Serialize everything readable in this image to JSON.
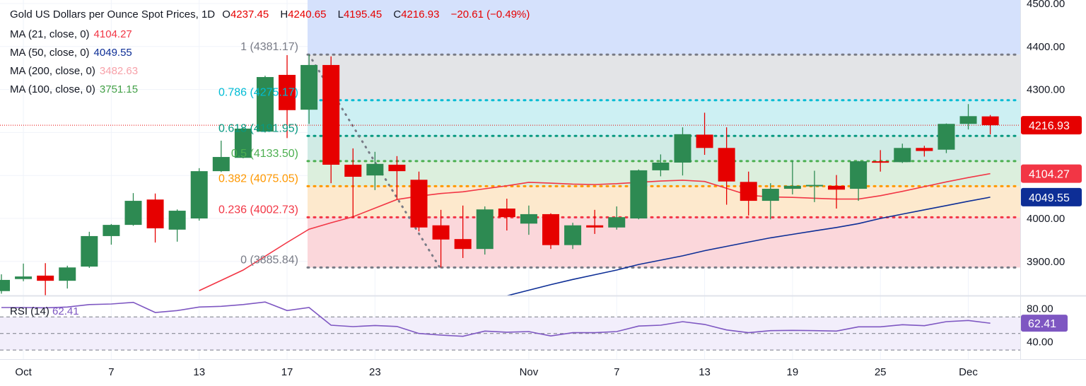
{
  "header": {
    "symbol": "Gold US Dollars per Ounce Spot Prices, 1D",
    "o_label": "O",
    "o_value": "4237.45",
    "h_label": "H",
    "h_value": "4240.65",
    "l_label": "L",
    "l_value": "4195.45",
    "c_label": "C",
    "c_value": "4216.93",
    "change": "−20.61 (−0.49%)"
  },
  "indicators": [
    {
      "label": "MA (21, close, 0)",
      "value": "4104.27",
      "color": "#f23645"
    },
    {
      "label": "MA (50, close, 0)",
      "value": "4049.55",
      "color": "#0d2e96"
    },
    {
      "label": "MA (200, close, 0)",
      "value": "3482.63",
      "color": "#f7a1a9"
    },
    {
      "label": "MA (100, close, 0)",
      "value": "3751.15",
      "color": "#43a047"
    }
  ],
  "rsi": {
    "label": "RSI (14)",
    "value": "62.41",
    "color": "#7e57c2"
  },
  "colors": {
    "up": "#2d8a52",
    "down": "#e60000",
    "last_price": "#e60000"
  },
  "chart_data": {
    "type": "candlestick",
    "title": "Gold US Dollars per Ounce Spot Prices, 1D",
    "ylim": [
      3820,
      4510
    ],
    "price_ticks": [
      "4500.00",
      "4400.00",
      "4300.00",
      "4000.00",
      "3900.00"
    ],
    "time_labels": [
      {
        "label": "Oct",
        "index": 1
      },
      {
        "label": "7",
        "index": 5
      },
      {
        "label": "13",
        "index": 9
      },
      {
        "label": "17",
        "index": 13
      },
      {
        "label": "23",
        "index": 17
      },
      {
        "label": "Nov",
        "index": 24
      },
      {
        "label": "7",
        "index": 28
      },
      {
        "label": "13",
        "index": 32
      },
      {
        "label": "19",
        "index": 36
      },
      {
        "label": "25",
        "index": 40
      },
      {
        "label": "Dec",
        "index": 44
      }
    ],
    "candles": [
      [
        "Sep 30",
        3831,
        3870,
        3825,
        3857
      ],
      [
        "Oct 1",
        3859,
        3895,
        3854,
        3865
      ],
      [
        "Oct 2",
        3867,
        3896,
        3821,
        3855
      ],
      [
        "Oct 3",
        3855,
        3890,
        3837,
        3886
      ],
      [
        "Oct 6",
        3888,
        3969,
        3885,
        3959
      ],
      [
        "Oct 7",
        3959,
        3987,
        3939,
        3985
      ],
      [
        "Oct 8",
        3985,
        4059,
        3983,
        4041
      ],
      [
        "Oct 9",
        4044,
        4058,
        3944,
        3977
      ],
      [
        "Oct 10",
        3974,
        4021,
        3946,
        4018
      ],
      [
        "Oct 13",
        4000,
        4117,
        3995,
        4110
      ],
      [
        "Oct 14",
        4110,
        4181,
        4108,
        4143
      ],
      [
        "Oct 15",
        4141,
        4212,
        4140,
        4209
      ],
      [
        "Oct 16",
        4202,
        4332,
        4200,
        4329
      ],
      [
        "Oct 17",
        4334,
        4380,
        4187,
        4252
      ],
      [
        "Oct 20",
        4253,
        4381,
        4220,
        4357
      ],
      [
        "Oct 21",
        4357,
        4377,
        4082,
        4125
      ],
      [
        "Oct 22",
        4125,
        4163,
        4002,
        4097
      ],
      [
        "Oct 23",
        4100,
        4155,
        4066,
        4127
      ],
      [
        "Oct 24",
        4125,
        4145,
        4044,
        4110
      ],
      [
        "Oct 27",
        4090,
        4109,
        3970,
        3979
      ],
      [
        "Oct 28",
        3984,
        4020,
        3886,
        3951
      ],
      [
        "Oct 29",
        3952,
        4030,
        3908,
        3929
      ],
      [
        "Oct 30",
        3929,
        4028,
        3916,
        4021
      ],
      [
        "Oct 31",
        4023,
        4046,
        3972,
        4003
      ],
      [
        "Nov 3",
        3988,
        4030,
        3962,
        4010
      ],
      [
        "Nov 4",
        4010,
        4012,
        3929,
        3938
      ],
      [
        "Nov 5",
        3938,
        3990,
        3929,
        3984
      ],
      [
        "Nov 6",
        3984,
        4020,
        3964,
        3979
      ],
      [
        "Nov 7",
        3979,
        4028,
        3974,
        4003
      ],
      [
        "Nov 10",
        4000,
        4114,
        3998,
        4112
      ],
      [
        "Nov 11",
        4112,
        4149,
        4098,
        4130
      ],
      [
        "Nov 12",
        4130,
        4212,
        4100,
        4196
      ],
      [
        "Nov 13",
        4195,
        4246,
        4148,
        4164
      ],
      [
        "Nov 14",
        4164,
        4212,
        4032,
        4086
      ],
      [
        "Nov 17",
        4085,
        4109,
        4007,
        4041
      ],
      [
        "Nov 18",
        4041,
        4082,
        3998,
        4069
      ],
      [
        "Nov 19",
        4069,
        4134,
        4056,
        4076
      ],
      [
        "Nov 20",
        4076,
        4111,
        4038,
        4078
      ],
      [
        "Nov 21",
        4076,
        4101,
        4023,
        4067
      ],
      [
        "Nov 24",
        4069,
        4134,
        4041,
        4133
      ],
      [
        "Nov 25",
        4133,
        4159,
        4109,
        4132
      ],
      [
        "Nov 26",
        4131,
        4174,
        4129,
        4164
      ],
      [
        "Nov 27",
        4164,
        4169,
        4144,
        4157
      ],
      [
        "Nov 28",
        4160,
        4221,
        4152,
        4220
      ],
      [
        "Dec 1",
        4220,
        4266,
        4207,
        4238
      ],
      [
        "Dec 2",
        4237.45,
        4240.65,
        4195.45,
        4216.93
      ]
    ],
    "ma21": [
      null,
      null,
      null,
      null,
      null,
      null,
      null,
      null,
      null,
      3832,
      3856,
      3880,
      3912,
      3944,
      3975,
      3990,
      4004,
      4024,
      4044,
      4052,
      4058,
      4062,
      4069,
      4076,
      4084,
      4082,
      4080,
      4079,
      4081,
      4084,
      4087,
      4089,
      4086,
      4070,
      4054,
      4050,
      4049,
      4047,
      4045,
      4045,
      4053,
      4063,
      4074,
      4085,
      4095,
      4104.27
    ],
    "ma50": [
      null,
      null,
      null,
      null,
      null,
      null,
      null,
      null,
      null,
      null,
      null,
      null,
      null,
      null,
      null,
      null,
      null,
      null,
      null,
      null,
      null,
      null,
      null,
      3820,
      3833,
      3846,
      3858,
      3869,
      3880,
      3893,
      3903,
      3913,
      3925,
      3935,
      3945,
      3955,
      3963,
      3971,
      3979,
      3988,
      4000,
      4010,
      4020,
      4030,
      4040,
      4049.55
    ],
    "rsi14": [
      81.4,
      81.4,
      81,
      82,
      85,
      85.6,
      87.6,
      75.4,
      77.7,
      82,
      82.8,
      85,
      88,
      77.7,
      81.4,
      60,
      58.3,
      59.7,
      58.5,
      50,
      48,
      46.6,
      52.9,
      51.5,
      52.3,
      47,
      50.9,
      50.9,
      52.3,
      59,
      60,
      64.3,
      60.9,
      54.3,
      50.9,
      53.4,
      53.8,
      53.4,
      52.9,
      58,
      58,
      60.6,
      59.4,
      64.3,
      65.7,
      62.41
    ],
    "rsi_ticks": [
      "80.00",
      "40.00"
    ],
    "rsi_bands": [
      70,
      50,
      30
    ],
    "fib_levels": [
      {
        "label": "1 (4381.17)",
        "price": 4381.17,
        "color": "#787b86",
        "fill": "#e3e4e7"
      },
      {
        "label": "0.786 (4275.17)",
        "price": 4275.17,
        "color": "#00bcd4",
        "fill": "#cdf0f3"
      },
      {
        "label": "0.618 (4191.95)",
        "price": 4191.95,
        "color": "#089981",
        "fill": "#d0ebe5"
      },
      {
        "label": "0.5 (4133.50)",
        "price": 4133.5,
        "color": "#4caf50",
        "fill": "#dcefdd"
      },
      {
        "label": "0.382 (4075.05)",
        "price": 4075.05,
        "color": "#ff9800",
        "fill": "#fde9cd"
      },
      {
        "label": "0.236 (4002.73)",
        "price": 4002.73,
        "color": "#f23645",
        "fill": "#fbd7db"
      },
      {
        "label": "0 (3885.84)",
        "price": 3885.84,
        "color": "#787b86",
        "fill": ""
      }
    ],
    "fib_top_fill": "#d5e1fc",
    "badges": [
      {
        "value": "4216.93",
        "price": 4216.93,
        "color": "#e60000"
      },
      {
        "value": "4104.27",
        "price": 4104.27,
        "color": "#f23645"
      },
      {
        "value": "4049.55",
        "price": 4049.55,
        "color": "#0d2e96"
      }
    ],
    "rsi_badge": {
      "value": "62.41",
      "color": "#7e57c2"
    }
  }
}
